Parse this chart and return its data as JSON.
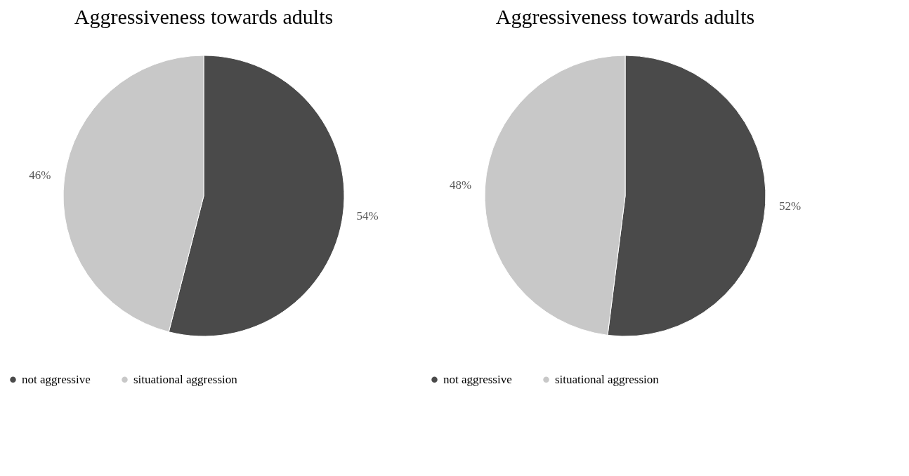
{
  "chart_data": [
    {
      "type": "pie",
      "title": "Aggressiveness towards adults",
      "categories": [
        "not aggressive",
        "situational aggression"
      ],
      "values": [
        54,
        46
      ],
      "value_labels": [
        "54%",
        "46%"
      ],
      "colors": [
        "#4a4a4a",
        "#c8c8c8"
      ],
      "legend": "bottom"
    },
    {
      "type": "pie",
      "title": "Aggressiveness towards adults",
      "categories": [
        "not aggressive",
        "situational aggression"
      ],
      "values": [
        52,
        48
      ],
      "value_labels": [
        "52%",
        "48%"
      ],
      "colors": [
        "#4a4a4a",
        "#c8c8c8"
      ],
      "legend": "bottom"
    }
  ]
}
